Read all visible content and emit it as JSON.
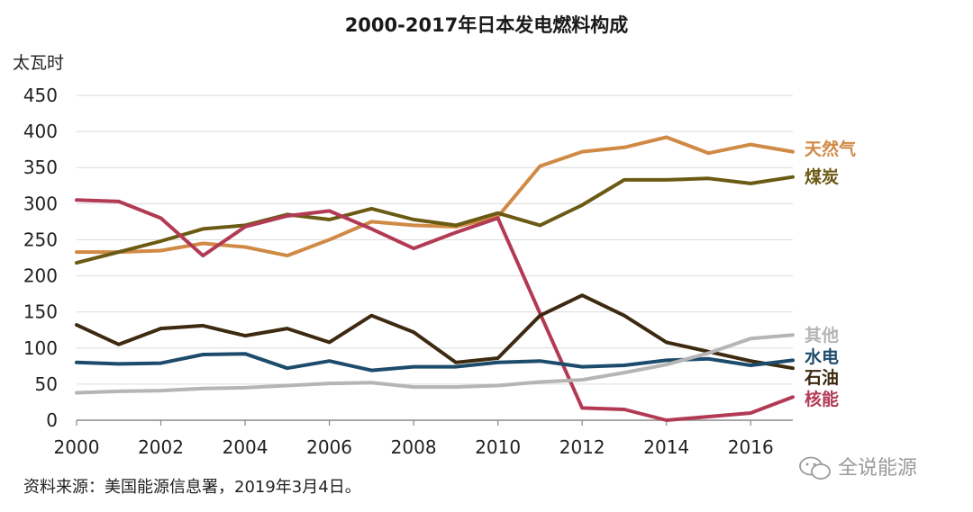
{
  "chart_data": {
    "type": "line",
    "title": "2000-2017年日本发电燃料构成",
    "ylabel": "太瓦时",
    "xlabel": "",
    "x": [
      2000,
      2001,
      2002,
      2003,
      2004,
      2005,
      2006,
      2007,
      2008,
      2009,
      2010,
      2011,
      2012,
      2013,
      2014,
      2015,
      2016,
      2017
    ],
    "ylim": [
      0,
      450
    ],
    "xlim": [
      2000,
      2017
    ],
    "yticks": [
      "0",
      "50",
      "100",
      "150",
      "200",
      "250",
      "300",
      "350",
      "400",
      "450"
    ],
    "xticks": [
      "2000",
      "2002",
      "2004",
      "2006",
      "2008",
      "2010",
      "2012",
      "2014",
      "2016"
    ],
    "grid": "horizontal",
    "legend_placement": "right, labels at line ends",
    "series": [
      {
        "name": "天然气",
        "color": "#d08a45",
        "values": [
          233,
          233,
          235,
          245,
          240,
          228,
          250,
          275,
          270,
          268,
          282,
          352,
          372,
          378,
          392,
          370,
          382,
          372
        ]
      },
      {
        "name": "煤炭",
        "color": "#6b5a14",
        "values": [
          218,
          233,
          248,
          265,
          270,
          285,
          278,
          293,
          278,
          270,
          287,
          270,
          298,
          333,
          333,
          335,
          328,
          337
        ]
      },
      {
        "name": "核能",
        "color": "#b23a55",
        "values": [
          305,
          303,
          280,
          228,
          268,
          283,
          290,
          265,
          238,
          260,
          280,
          148,
          17,
          15,
          0,
          5,
          10,
          32
        ]
      },
      {
        "name": "石油",
        "color": "#3d2a10",
        "values": [
          132,
          105,
          127,
          131,
          117,
          127,
          108,
          145,
          122,
          80,
          86,
          145,
          173,
          145,
          108,
          95,
          82,
          72
        ]
      },
      {
        "name": "水电",
        "color": "#1d4b6b",
        "values": [
          80,
          78,
          79,
          91,
          92,
          72,
          82,
          69,
          74,
          74,
          80,
          82,
          74,
          76,
          83,
          85,
          76,
          83
        ]
      },
      {
        "name": "其他",
        "color": "#b5b5b5",
        "values": [
          38,
          40,
          41,
          44,
          45,
          48,
          51,
          52,
          46,
          46,
          48,
          53,
          56,
          66,
          77,
          93,
          113,
          118
        ]
      }
    ],
    "source": "资料来源：美国能源信息署，2019年3月4日。",
    "watermark": "全说能源"
  }
}
